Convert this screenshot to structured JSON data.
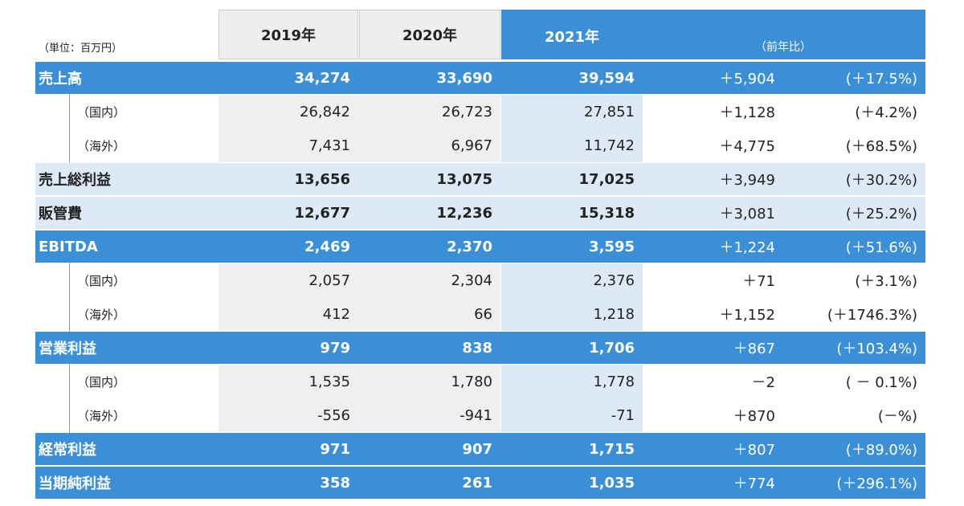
{
  "header": {
    "unit": "（単位：百万円）",
    "columns": [
      "2019年",
      "2020年",
      "2021年"
    ],
    "yoy": "（前年比）"
  },
  "table": {
    "rows": [
      {
        "label": "売上高",
        "color": "#3a8fd6",
        "cells": [
          "34,274",
          "33,690",
          "39,594",
          "＋5,904",
          "(＋17.5%)"
        ]
      },
      {
        "label": "（国内）",
        "cells": [
          "26,842",
          "26,723",
          "27,851",
          "＋1,128",
          "(＋4.2%)"
        ]
      },
      {
        "label": "（海外）",
        "cells": [
          "7,431",
          "6,967",
          "11,742",
          "＋4,775",
          "(＋68.5%)"
        ]
      },
      {
        "label": "売上総利益",
        "color": "#dde9f6",
        "cells": [
          "13,656",
          "13,075",
          "17,025",
          "＋3,949",
          "(＋30.2%)"
        ]
      },
      {
        "label": "販管費",
        "color": "#dde9f6",
        "cells": [
          "12,677",
          "12,236",
          "15,318",
          "＋3,081",
          "(＋25.2%)"
        ]
      },
      {
        "label": "EBITDA",
        "color": "#3a8fd6",
        "cells": [
          "2,469",
          "2,370",
          "3,595",
          "＋1,224",
          "(＋51.6%)"
        ]
      },
      {
        "label": "（国内）",
        "cells": [
          "2,057",
          "2,304",
          "2,376",
          "＋71",
          "(＋3.1%)"
        ]
      },
      {
        "label": "（海外）",
        "cells": [
          "412",
          "66",
          "1,218",
          "＋1,152",
          "(＋1746.3%)"
        ]
      },
      {
        "label": "営業利益",
        "color": "#3a8fd6",
        "cells": [
          "979",
          "838",
          "1,706",
          "＋867",
          "(＋103.4%)"
        ]
      },
      {
        "label": "（国内）",
        "cells": [
          "1,535",
          "1,780",
          "1,778",
          "－2",
          "( － 0.1%)"
        ]
      },
      {
        "label": "（海外）",
        "cells": [
          "-556",
          "-941",
          "-71",
          "＋870",
          "(－%)"
        ]
      },
      {
        "label": "経常利益",
        "color": "#3a8fd6",
        "cells": [
          "971",
          "907",
          "1,715",
          "＋807",
          "(＋89.0%)"
        ]
      },
      {
        "label": "当期純利益",
        "color": "#3a8fd6",
        "cells": [
          "358",
          "261",
          "1,035",
          "＋774",
          "(＋296.1%)"
        ]
      }
    ]
  }
}
